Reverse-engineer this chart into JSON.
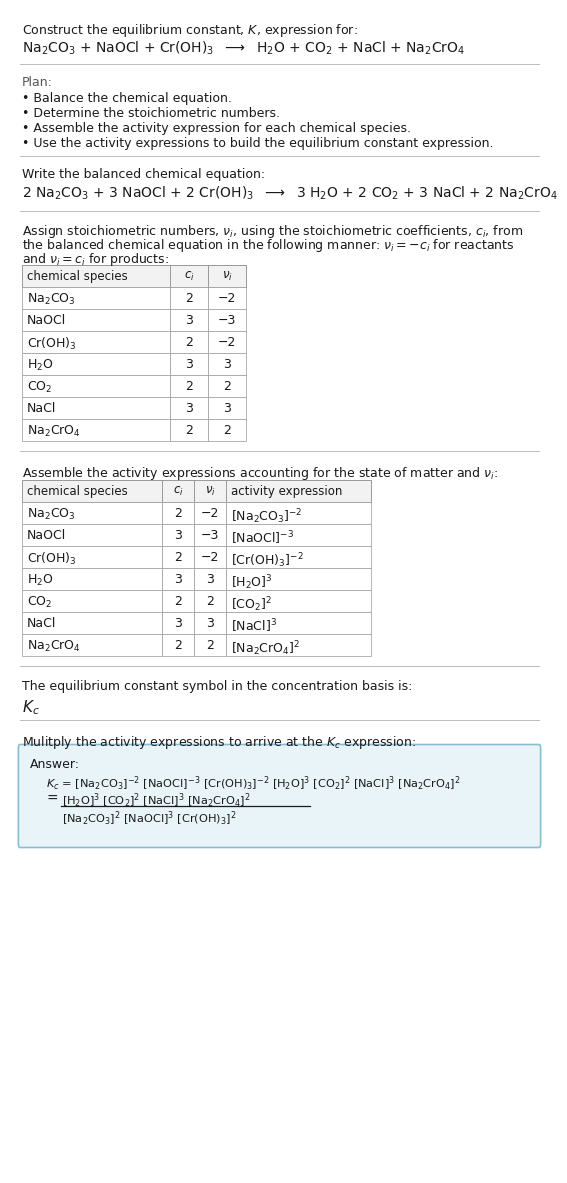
{
  "title_line1": "Construct the equilibrium constant, $K$, expression for:",
  "reaction_unbalanced": "Na$_2$CO$_3$ + NaOCl + Cr(OH)$_3$  $\\longrightarrow$  H$_2$O + CO$_2$ + NaCl + Na$_2$CrO$_4$",
  "plan_header": "Plan:",
  "plan_items": [
    "• Balance the chemical equation.",
    "• Determine the stoichiometric numbers.",
    "• Assemble the activity expression for each chemical species.",
    "• Use the activity expressions to build the equilibrium constant expression."
  ],
  "balanced_header": "Write the balanced chemical equation:",
  "reaction_balanced": "2 Na$_2$CO$_3$ + 3 NaOCl + 2 Cr(OH)$_3$  $\\longrightarrow$  3 H$_2$O + 2 CO$_2$ + 3 NaCl + 2 Na$_2$CrO$_4$",
  "stoich_header1": "Assign stoichiometric numbers, $\\nu_i$, using the stoichiometric coefficients, $c_i$, from",
  "stoich_header2": "the balanced chemical equation in the following manner: $\\nu_i = -c_i$ for reactants",
  "stoich_header3": "and $\\nu_i = c_i$ for products:",
  "table1_col0": "chemical species",
  "table1_col1": "$c_i$",
  "table1_col2": "$\\nu_i$",
  "table1_rows": [
    [
      "Na$_2$CO$_3$",
      "2",
      "−2"
    ],
    [
      "NaOCl",
      "3",
      "−3"
    ],
    [
      "Cr(OH)$_3$",
      "2",
      "−2"
    ],
    [
      "H$_2$O",
      "3",
      "3"
    ],
    [
      "CO$_2$",
      "2",
      "2"
    ],
    [
      "NaCl",
      "3",
      "3"
    ],
    [
      "Na$_2$CrO$_4$",
      "2",
      "2"
    ]
  ],
  "activity_header": "Assemble the activity expressions accounting for the state of matter and $\\nu_i$:",
  "table2_col0": "chemical species",
  "table2_col1": "$c_i$",
  "table2_col2": "$\\nu_i$",
  "table2_col3": "activity expression",
  "table2_rows": [
    [
      "Na$_2$CO$_3$",
      "2",
      "−2",
      "[Na$_2$CO$_3$]$^{-2}$"
    ],
    [
      "NaOCl",
      "3",
      "−3",
      "[NaOCl]$^{-3}$"
    ],
    [
      "Cr(OH)$_3$",
      "2",
      "−2",
      "[Cr(OH)$_3$]$^{-2}$"
    ],
    [
      "H$_2$O",
      "3",
      "3",
      "[H$_2$O]$^3$"
    ],
    [
      "CO$_2$",
      "2",
      "2",
      "[CO$_2$]$^2$"
    ],
    [
      "NaCl",
      "3",
      "3",
      "[NaCl]$^3$"
    ],
    [
      "Na$_2$CrO$_4$",
      "2",
      "2",
      "[Na$_2$CrO$_4$]$^2$"
    ]
  ],
  "kc_symbol_header": "The equilibrium constant symbol in the concentration basis is:",
  "kc_symbol": "$K_c$",
  "multiply_header": "Mulitply the activity expressions to arrive at the $K_c$ expression:",
  "answer_label": "Answer:",
  "kc_line1": "$K_c$ = [Na$_2$CO$_3$]$^{-2}$ [NaOCl]$^{-3}$ [Cr(OH)$_3$]$^{-2}$ [H$_2$O]$^3$ [CO$_2$]$^2$ [NaCl]$^3$ [Na$_2$CrO$_4$]$^2$",
  "kc_eq_sign": "=",
  "kc_line2_num": "[H$_2$O]$^3$ [CO$_2$]$^2$ [NaCl]$^3$ [Na$_2$CrO$_4$]$^2$",
  "kc_line2_den": "[Na$_2$CO$_3$]$^2$ [NaOCl]$^3$ [Cr(OH)$_3$]$^2$",
  "bg_color": "#ffffff",
  "text_color": "#1a1a1a",
  "gray_text": "#555555",
  "sep_color": "#bbbbbb",
  "table_border": "#999999",
  "table_header_bg": "#f2f2f2",
  "table_row_bg": "#ffffff",
  "answer_bg": "#e8f4f8",
  "answer_border": "#8bbcd4"
}
